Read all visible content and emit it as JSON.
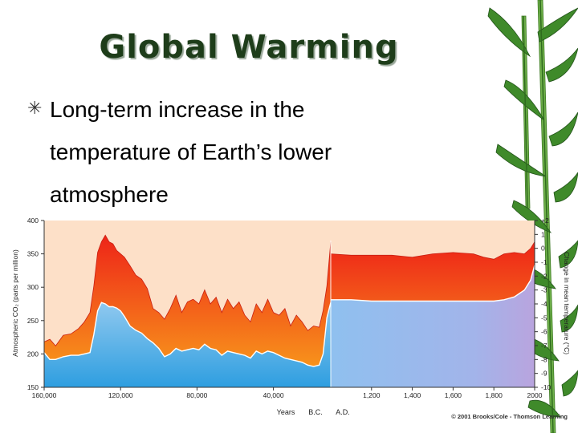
{
  "slide": {
    "title": "Global Warming",
    "bullet": "Long-term increase in the temperature of Earth’s lower atmosphere",
    "bullet_icon": "asterisk-bullet-icon"
  },
  "colors": {
    "title": "#1e3d1a",
    "co2_band": "#f02a1a",
    "temperature_band": "#45a8e6",
    "background": "#fde0c8",
    "bamboo": "#3f8a2a"
  },
  "chart_data": {
    "type": "area",
    "ylabel": "Atmospheric CO₂ (parts per million)",
    "y2label": "Change in mean temperature (°C)",
    "xlabel": "Years",
    "era_labels": [
      "B.C.",
      "A.D."
    ],
    "copyright": "© 2001 Brooks/Cole - Thomson Learning",
    "ylim": [
      150,
      400
    ],
    "y_ticks": [
      "400",
      "350",
      "300",
      "250",
      "200",
      "150"
    ],
    "y2lim": [
      -10,
      2
    ],
    "y2_ticks": [
      "+2",
      "1",
      "0",
      "-1",
      "-2",
      "-3",
      "-4",
      "-5",
      "-6",
      "-7",
      "-8",
      "-9",
      "-10"
    ],
    "x_ticks_bc": [
      "160,000",
      "120,000",
      "80,000",
      "40,000"
    ],
    "x_ticks_ad": [
      "1,200",
      "1,400",
      "1,600",
      "1,800",
      "2000"
    ],
    "bc_xlim": [
      160000,
      10000
    ],
    "ad_xlim": [
      1000,
      2000
    ],
    "series": [
      {
        "segment": "bc",
        "co2_x": [
          160000,
          157000,
          154000,
          150000,
          146000,
          142000,
          139000,
          136000,
          134000,
          132000,
          130000,
          128000,
          126000,
          124000,
          122000,
          120000,
          118000,
          115000,
          112000,
          109000,
          106000,
          103000,
          100000,
          97000,
          94000,
          91000,
          88000,
          85000,
          82000,
          79000,
          76000,
          73000,
          70000,
          67000,
          64000,
          61000,
          58000,
          55000,
          52000,
          49000,
          46000,
          43000,
          40000,
          37000,
          34000,
          31000,
          28000,
          25000,
          22000,
          19000,
          16000,
          14000,
          12000,
          10000
        ],
        "co2_y": [
          218,
          222,
          212,
          228,
          230,
          238,
          248,
          262,
          302,
          352,
          368,
          378,
          368,
          365,
          355,
          350,
          345,
          332,
          318,
          312,
          298,
          268,
          262,
          252,
          268,
          288,
          262,
          278,
          282,
          275,
          296,
          275,
          285,
          262,
          282,
          268,
          278,
          258,
          248,
          275,
          262,
          282,
          262,
          258,
          268,
          242,
          258,
          248,
          235,
          242,
          240,
          265,
          302,
          368
        ],
        "temp_x": [
          160000,
          157000,
          154000,
          150000,
          146000,
          142000,
          139000,
          136000,
          134000,
          132000,
          130000,
          128000,
          126000,
          124000,
          122000,
          120000,
          118000,
          115000,
          112000,
          109000,
          106000,
          103000,
          100000,
          97000,
          94000,
          91000,
          88000,
          85000,
          82000,
          79000,
          76000,
          73000,
          70000,
          67000,
          64000,
          61000,
          58000,
          55000,
          52000,
          49000,
          46000,
          43000,
          40000,
          37000,
          34000,
          31000,
          28000,
          25000,
          22000,
          19000,
          16000,
          14000,
          12000,
          10000
        ],
        "temp_y": [
          -7.5,
          -8.0,
          -8.0,
          -7.8,
          -7.7,
          -7.7,
          -7.6,
          -7.5,
          -6.2,
          -4.5,
          -3.9,
          -4.0,
          -4.2,
          -4.2,
          -4.3,
          -4.5,
          -4.9,
          -5.6,
          -5.9,
          -6.1,
          -6.5,
          -6.8,
          -7.2,
          -7.8,
          -7.6,
          -7.2,
          -7.4,
          -7.3,
          -7.2,
          -7.3,
          -6.9,
          -7.2,
          -7.3,
          -7.7,
          -7.4,
          -7.5,
          -7.6,
          -7.7,
          -7.9,
          -7.4,
          -7.6,
          -7.4,
          -7.5,
          -7.7,
          -7.9,
          -8.0,
          -8.1,
          -8.2,
          -8.4,
          -8.5,
          -8.4,
          -7.6,
          -5.0,
          -3.9
        ]
      },
      {
        "segment": "ad",
        "co2_x": [
          1000,
          1100,
          1200,
          1300,
          1400,
          1500,
          1600,
          1700,
          1750,
          1800,
          1850,
          1900,
          1950,
          1980,
          2000
        ],
        "co2_y": [
          350,
          348,
          348,
          348,
          345,
          350,
          352,
          350,
          345,
          342,
          350,
          352,
          350,
          358,
          368
        ],
        "temp_x": [
          1000,
          1100,
          1200,
          1300,
          1400,
          1500,
          1600,
          1700,
          1750,
          1800,
          1850,
          1900,
          1950,
          1980,
          2000
        ],
        "temp_y": [
          -3.7,
          -3.7,
          -3.8,
          -3.8,
          -3.8,
          -3.8,
          -3.8,
          -3.8,
          -3.8,
          -3.8,
          -3.7,
          -3.5,
          -3.0,
          -2.3,
          -1.2
        ]
      }
    ]
  }
}
